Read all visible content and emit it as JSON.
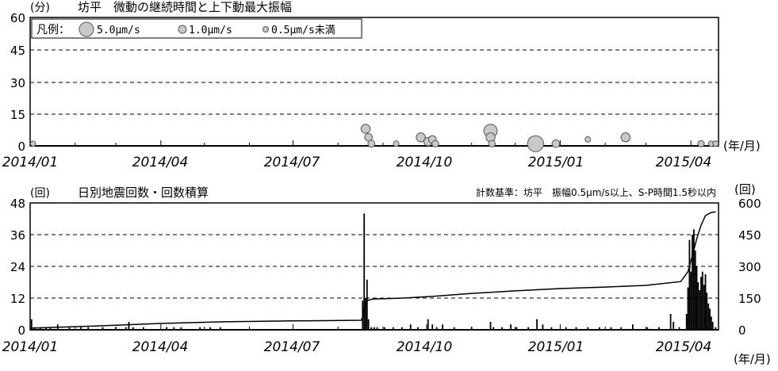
{
  "top_chart": {
    "unit_label": "(分)",
    "title": "坊平　微動の継続時間と上下動最大振幅",
    "y_ticks": [
      "0",
      "15",
      "30",
      "45",
      "60"
    ],
    "x_ticks": [
      "2014/01",
      "2014/04",
      "2014/07",
      "2014/10",
      "2015/01",
      "2015/04"
    ],
    "x_unit": "(年/月)",
    "legend": {
      "prefix": "凡例：",
      "large": "5.0μm/s",
      "medium": "1.0μm/s",
      "small": "0.5μm/s未満"
    }
  },
  "bottom_chart": {
    "unit_label": "(回)",
    "title": "日別地震回数・回数積算",
    "criteria": "計数基準：坊平　振幅0.5μm/s以上、S-P時間1.5秒以内",
    "y_left_ticks": [
      "0",
      "12",
      "24",
      "36",
      "48"
    ],
    "y_right_unit": "(回)",
    "y_right_ticks": [
      "0",
      "150",
      "300",
      "450",
      "600"
    ],
    "x_ticks": [
      "2014/01",
      "2014/04",
      "2014/07",
      "2014/10",
      "2015/01",
      "2015/04"
    ],
    "x_unit": "(年/月)"
  },
  "chart_data": [
    {
      "type": "scatter",
      "title": "坊平　微動の継続時間と上下動最大振幅",
      "ylabel": "(分)",
      "xlabel": "(年/月)",
      "ylim": [
        0,
        60
      ],
      "xlim": [
        "2014-01-01",
        "2015-04-20"
      ],
      "grid": true,
      "legend_position": "top-left",
      "points": [
        {
          "x": "2014-01-03",
          "y": 1,
          "amp": 0.5
        },
        {
          "x": "2014-08-20",
          "y": 8,
          "amp": 1.6
        },
        {
          "x": "2014-08-22",
          "y": 4,
          "amp": 1.2
        },
        {
          "x": "2014-08-24",
          "y": 1,
          "amp": 1.0
        },
        {
          "x": "2014-09-10",
          "y": 1,
          "amp": 0.6
        },
        {
          "x": "2014-09-27",
          "y": 4,
          "amp": 1.6
        },
        {
          "x": "2014-10-02",
          "y": 2,
          "amp": 1.4
        },
        {
          "x": "2014-10-05",
          "y": 3,
          "amp": 1.2
        },
        {
          "x": "2014-10-07",
          "y": 1,
          "amp": 0.9
        },
        {
          "x": "2014-11-14",
          "y": 7,
          "amp": 2.8
        },
        {
          "x": "2014-11-14",
          "y": 4,
          "amp": 1.6
        },
        {
          "x": "2014-11-15",
          "y": 1,
          "amp": 0.9
        },
        {
          "x": "2014-12-15",
          "y": 1,
          "amp": 3.6
        },
        {
          "x": "2014-12-29",
          "y": 1,
          "amp": 1.2
        },
        {
          "x": "2015-01-20",
          "y": 3,
          "amp": 0.6
        },
        {
          "x": "2015-02-15",
          "y": 4,
          "amp": 1.6
        },
        {
          "x": "2015-04-08",
          "y": 1,
          "amp": 0.8
        },
        {
          "x": "2015-04-15",
          "y": 1,
          "amp": 0.6
        },
        {
          "x": "2015-04-18",
          "y": 1,
          "amp": 0.6
        }
      ]
    },
    {
      "type": "bar",
      "title": "日別地震回数・回数積算",
      "ylabel": "(回)",
      "y2label": "(回)",
      "xlabel": "(年/月)",
      "ylim": [
        0,
        48
      ],
      "y2lim": [
        0,
        600
      ],
      "xlim": [
        "2014-01-01",
        "2015-04-20"
      ],
      "grid": true,
      "bars": [
        {
          "x": "2014-01-02",
          "y": 4
        },
        {
          "x": "2014-01-04",
          "y": 1
        },
        {
          "x": "2014-01-08",
          "y": 1
        },
        {
          "x": "2014-01-12",
          "y": 1
        },
        {
          "x": "2014-01-15",
          "y": 1
        },
        {
          "x": "2014-01-20",
          "y": 2
        },
        {
          "x": "2014-01-28",
          "y": 1
        },
        {
          "x": "2014-02-05",
          "y": 1
        },
        {
          "x": "2014-02-10",
          "y": 1
        },
        {
          "x": "2014-02-20",
          "y": 1
        },
        {
          "x": "2014-03-01",
          "y": 1
        },
        {
          "x": "2014-03-08",
          "y": 1
        },
        {
          "x": "2014-03-10",
          "y": 3
        },
        {
          "x": "2014-03-13",
          "y": 1
        },
        {
          "x": "2014-03-20",
          "y": 1
        },
        {
          "x": "2014-04-05",
          "y": 1
        },
        {
          "x": "2014-04-10",
          "y": 1
        },
        {
          "x": "2014-04-15",
          "y": 1
        },
        {
          "x": "2014-04-28",
          "y": 1
        },
        {
          "x": "2014-05-05",
          "y": 1
        },
        {
          "x": "2014-05-12",
          "y": 1
        },
        {
          "x": "2014-08-18",
          "y": 11
        },
        {
          "x": "2014-08-19",
          "y": 44
        },
        {
          "x": "2014-08-20",
          "y": 12
        },
        {
          "x": "2014-08-21",
          "y": 19
        },
        {
          "x": "2014-08-22",
          "y": 4
        },
        {
          "x": "2014-08-24",
          "y": 1
        },
        {
          "x": "2014-08-26",
          "y": 1
        },
        {
          "x": "2014-08-28",
          "y": 1
        },
        {
          "x": "2014-09-02",
          "y": 1
        },
        {
          "x": "2014-09-08",
          "y": 1
        },
        {
          "x": "2014-09-14",
          "y": 1
        },
        {
          "x": "2014-09-20",
          "y": 2
        },
        {
          "x": "2014-09-25",
          "y": 1
        },
        {
          "x": "2014-10-02",
          "y": 4
        },
        {
          "x": "2014-10-05",
          "y": 2
        },
        {
          "x": "2014-10-08",
          "y": 1
        },
        {
          "x": "2014-10-12",
          "y": 2
        },
        {
          "x": "2014-10-20",
          "y": 1
        },
        {
          "x": "2014-11-01",
          "y": 1
        },
        {
          "x": "2014-11-14",
          "y": 3
        },
        {
          "x": "2014-11-16",
          "y": 1
        },
        {
          "x": "2014-11-22",
          "y": 1
        },
        {
          "x": "2014-11-28",
          "y": 2
        },
        {
          "x": "2014-12-02",
          "y": 1
        },
        {
          "x": "2014-12-10",
          "y": 1
        },
        {
          "x": "2014-12-16",
          "y": 4
        },
        {
          "x": "2014-12-20",
          "y": 2
        },
        {
          "x": "2014-12-26",
          "y": 1
        },
        {
          "x": "2015-01-05",
          "y": 1
        },
        {
          "x": "2015-01-12",
          "y": 1
        },
        {
          "x": "2015-01-20",
          "y": 1
        },
        {
          "x": "2015-01-28",
          "y": 1
        },
        {
          "x": "2015-02-05",
          "y": 1
        },
        {
          "x": "2015-02-12",
          "y": 1
        },
        {
          "x": "2015-02-20",
          "y": 2
        },
        {
          "x": "2015-03-02",
          "y": 1
        },
        {
          "x": "2015-03-10",
          "y": 1
        },
        {
          "x": "2015-03-18",
          "y": 6
        },
        {
          "x": "2015-03-20",
          "y": 3
        },
        {
          "x": "2015-03-24",
          "y": 1
        },
        {
          "x": "2015-03-29",
          "y": 6
        },
        {
          "x": "2015-03-30",
          "y": 16
        },
        {
          "x": "2015-03-31",
          "y": 34
        },
        {
          "x": "2015-04-01",
          "y": 22
        },
        {
          "x": "2015-04-02",
          "y": 36
        },
        {
          "x": "2015-04-03",
          "y": 38
        },
        {
          "x": "2015-04-04",
          "y": 30
        },
        {
          "x": "2015-04-05",
          "y": 24
        },
        {
          "x": "2015-04-06",
          "y": 18
        },
        {
          "x": "2015-04-07",
          "y": 15
        },
        {
          "x": "2015-04-08",
          "y": 20
        },
        {
          "x": "2015-04-09",
          "y": 22
        },
        {
          "x": "2015-04-10",
          "y": 17
        },
        {
          "x": "2015-04-11",
          "y": 21
        },
        {
          "x": "2015-04-12",
          "y": 14
        },
        {
          "x": "2015-04-13",
          "y": 10
        },
        {
          "x": "2015-04-14",
          "y": 8
        },
        {
          "x": "2015-04-15",
          "y": 5
        },
        {
          "x": "2015-04-16",
          "y": 3
        },
        {
          "x": "2015-04-18",
          "y": 1
        }
      ],
      "cumulative": [
        {
          "x": "2014-01-01",
          "y": 0
        },
        {
          "x": "2014-01-02",
          "y": 8
        },
        {
          "x": "2014-02-15",
          "y": 18
        },
        {
          "x": "2014-04-01",
          "y": 30
        },
        {
          "x": "2014-05-15",
          "y": 38
        },
        {
          "x": "2014-07-01",
          "y": 42
        },
        {
          "x": "2014-08-17",
          "y": 45
        },
        {
          "x": "2014-08-18",
          "y": 60
        },
        {
          "x": "2014-08-19",
          "y": 110
        },
        {
          "x": "2014-08-21",
          "y": 138
        },
        {
          "x": "2014-08-25",
          "y": 145
        },
        {
          "x": "2014-09-15",
          "y": 150
        },
        {
          "x": "2014-10-05",
          "y": 158
        },
        {
          "x": "2014-11-01",
          "y": 172
        },
        {
          "x": "2014-12-01",
          "y": 184
        },
        {
          "x": "2015-01-01",
          "y": 195
        },
        {
          "x": "2015-02-01",
          "y": 202
        },
        {
          "x": "2015-03-01",
          "y": 210
        },
        {
          "x": "2015-03-25",
          "y": 228
        },
        {
          "x": "2015-03-30",
          "y": 275
        },
        {
          "x": "2015-04-02",
          "y": 350
        },
        {
          "x": "2015-04-05",
          "y": 430
        },
        {
          "x": "2015-04-08",
          "y": 495
        },
        {
          "x": "2015-04-11",
          "y": 540
        },
        {
          "x": "2015-04-15",
          "y": 555
        },
        {
          "x": "2015-04-18",
          "y": 558
        }
      ]
    }
  ]
}
